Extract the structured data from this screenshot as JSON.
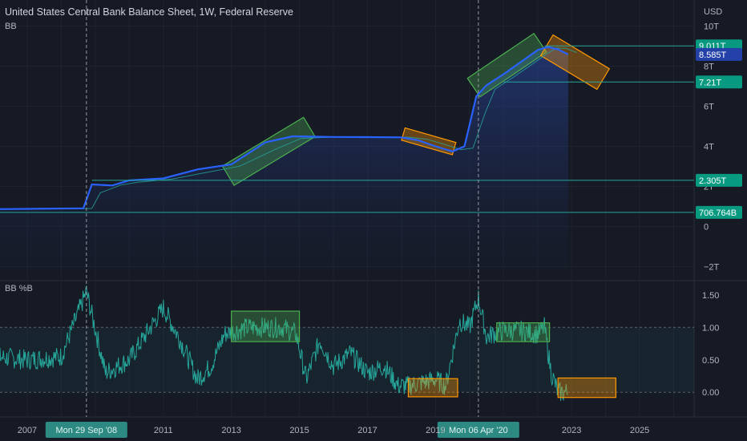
{
  "header": {
    "title": "United States Central Bank Balance Sheet, 1W, Federal Reserve",
    "indicator_top": "BB",
    "indicator_bottom": "BB %B",
    "currency": "USD"
  },
  "colors": {
    "background": "#161a25",
    "price_line": "#2962ff",
    "band_line": "#26a69a",
    "teal_label": "#089981",
    "blue_label": "#2341a8",
    "green_box": "#4caf50",
    "orange_box": "#ff9800"
  },
  "chart_data": [
    {
      "type": "line",
      "series": [
        {
          "x": [
            2005.0,
            2007.0,
            2008.65,
            2008.9,
            2009.5,
            2010.0,
            2011.0,
            2012.0,
            2013.0,
            2014.0,
            2014.8,
            2016.0,
            2017.0,
            2018.0,
            2018.5,
            2019.0,
            2019.5,
            2019.85,
            2020.2,
            2020.5,
            2021.0,
            2021.5,
            2022.0,
            2022.3,
            2022.6,
            2022.9
          ],
          "values": [
            0.87,
            0.88,
            0.91,
            2.1,
            2.05,
            2.3,
            2.4,
            2.85,
            3.1,
            4.2,
            4.5,
            4.47,
            4.46,
            4.45,
            4.3,
            4.0,
            3.75,
            4.0,
            6.5,
            7.05,
            7.6,
            8.2,
            8.8,
            8.96,
            8.84,
            8.585
          ]
        }
      ],
      "y_tick_labels": [
        "10T",
        "8T",
        "6T",
        "4T",
        "2T",
        "0",
        "−2T"
      ],
      "x_tick_labels": [
        "2007",
        "2011",
        "2013",
        "2015",
        "2017",
        "2019",
        "2023",
        "2025"
      ],
      "price_labels": [
        "9.011T",
        "8.585T",
        "7.21T",
        "2.305T",
        "706.764B"
      ],
      "levels": [
        9.011,
        7.21,
        2.305,
        0.706764
      ],
      "ylim": [
        -2.7,
        11.3
      ],
      "xlim": [
        2006.2,
        2026.6
      ],
      "events": [
        {
          "x": 2008.74,
          "label": "Mon 29 Sep '08"
        },
        {
          "x": 2020.26,
          "label": "Mon 06 Apr '20"
        }
      ],
      "grid": true
    },
    {
      "type": "line",
      "series": [
        {
          "x": [
            2005.0,
            2007.0,
            2008.0,
            2008.74,
            2009.3,
            2010.0,
            2011.0,
            2011.5,
            2012.0,
            2012.4,
            2012.8,
            2013.5,
            2014.5,
            2014.9,
            2015.2,
            2015.6,
            2016.0,
            2016.5,
            2017.0,
            2017.5,
            2017.9,
            2018.2,
            2018.6,
            2019.0,
            2019.3,
            2019.7,
            2020.0,
            2020.26,
            2020.5,
            2020.7,
            2021.0,
            2021.5,
            2022.0,
            2022.2,
            2022.4,
            2022.6,
            2022.9
          ],
          "values": [
            0.6,
            0.5,
            0.55,
            1.55,
            0.3,
            0.5,
            1.3,
            0.8,
            0.2,
            0.4,
            0.9,
            1.0,
            1.0,
            0.9,
            0.2,
            0.8,
            0.4,
            0.6,
            0.3,
            0.4,
            0.1,
            0.1,
            0.15,
            0.2,
            0.1,
            1.1,
            1.0,
            1.45,
            0.85,
            0.9,
            0.95,
            0.95,
            0.9,
            1.0,
            0.3,
            0.0,
            0.0
          ]
        }
      ],
      "y_tick_labels": [
        "1.50",
        "1.00",
        "0.50",
        "0.00"
      ],
      "bands": [
        1.0,
        0.0
      ],
      "ylim": [
        -0.38,
        1.72
      ]
    }
  ]
}
